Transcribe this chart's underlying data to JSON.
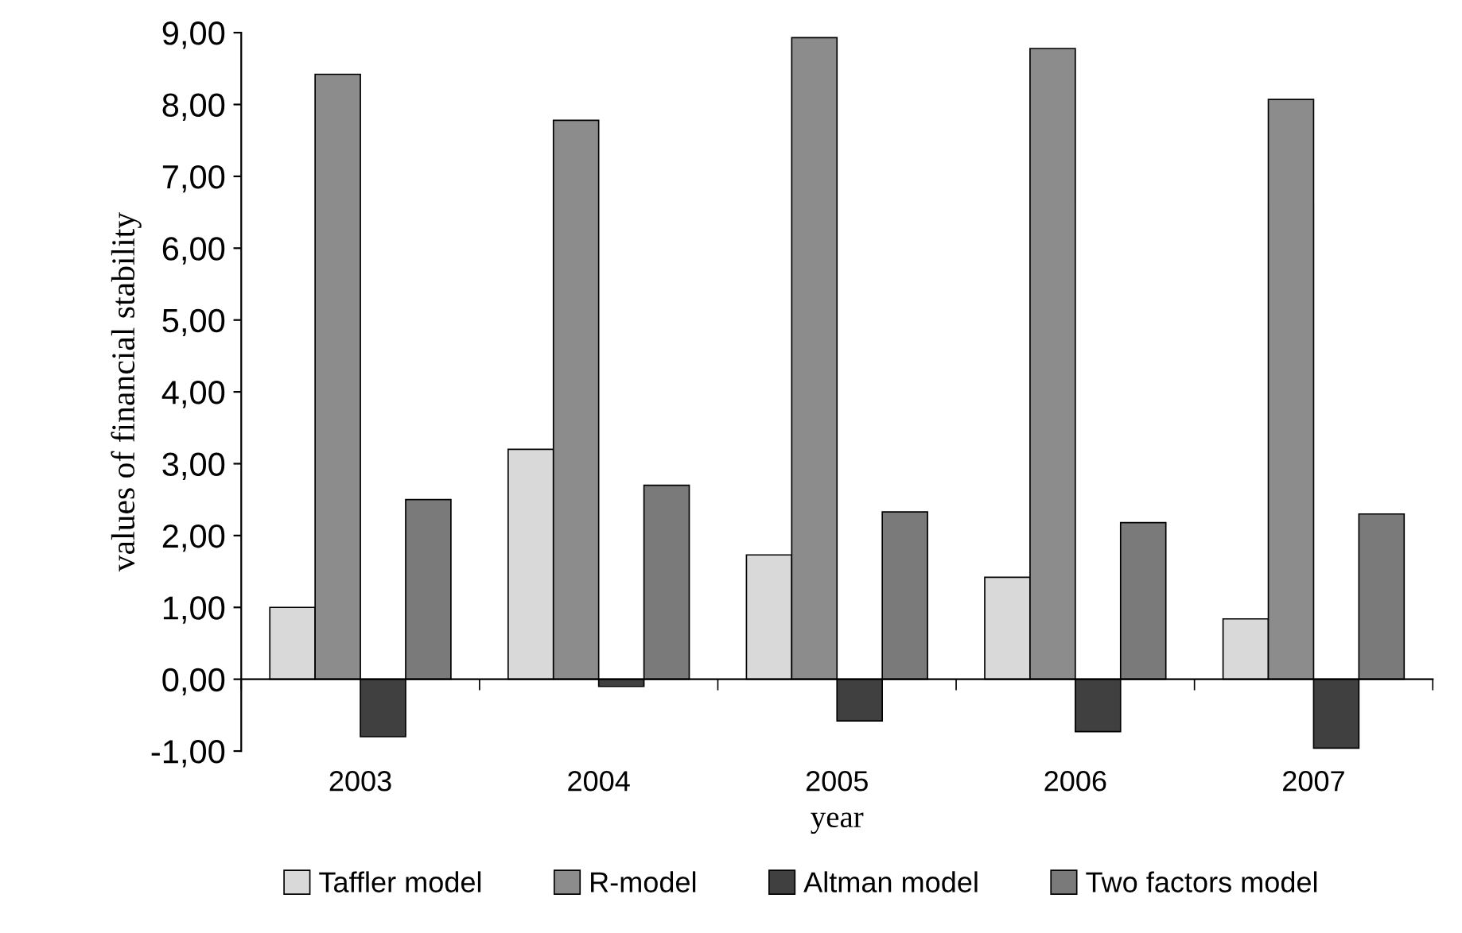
{
  "chart_data": {
    "type": "bar",
    "xlabel": "year",
    "ylabel": "values of financial stability",
    "categories": [
      "2003",
      "2004",
      "2005",
      "2006",
      "2007"
    ],
    "series": [
      {
        "name": "Taffler model",
        "color": "#d9d9d9",
        "values": [
          1.0,
          3.2,
          1.73,
          1.42,
          0.84
        ]
      },
      {
        "name": "R-model",
        "color": "#8c8c8c",
        "values": [
          8.42,
          7.78,
          8.93,
          8.78,
          8.07
        ]
      },
      {
        "name": "Altman model",
        "color": "#404040",
        "values": [
          -0.8,
          -0.1,
          -0.58,
          -0.73,
          -0.96
        ]
      },
      {
        "name": "Two factors model",
        "color": "#7a7a7a",
        "values": [
          2.5,
          2.7,
          2.33,
          2.18,
          2.3
        ]
      }
    ],
    "ylim": [
      -1,
      9
    ],
    "yticks": [
      {
        "value": -1,
        "label": "-1,00"
      },
      {
        "value": 0,
        "label": "0,00"
      },
      {
        "value": 1,
        "label": "1,00"
      },
      {
        "value": 2,
        "label": "2,00"
      },
      {
        "value": 3,
        "label": "3,00"
      },
      {
        "value": 4,
        "label": "4,00"
      },
      {
        "value": 5,
        "label": "5,00"
      },
      {
        "value": 6,
        "label": "6,00"
      },
      {
        "value": 7,
        "label": "7,00"
      },
      {
        "value": 8,
        "label": "8,00"
      },
      {
        "value": 9,
        "label": "9,00"
      }
    ],
    "legend": "bottom"
  }
}
